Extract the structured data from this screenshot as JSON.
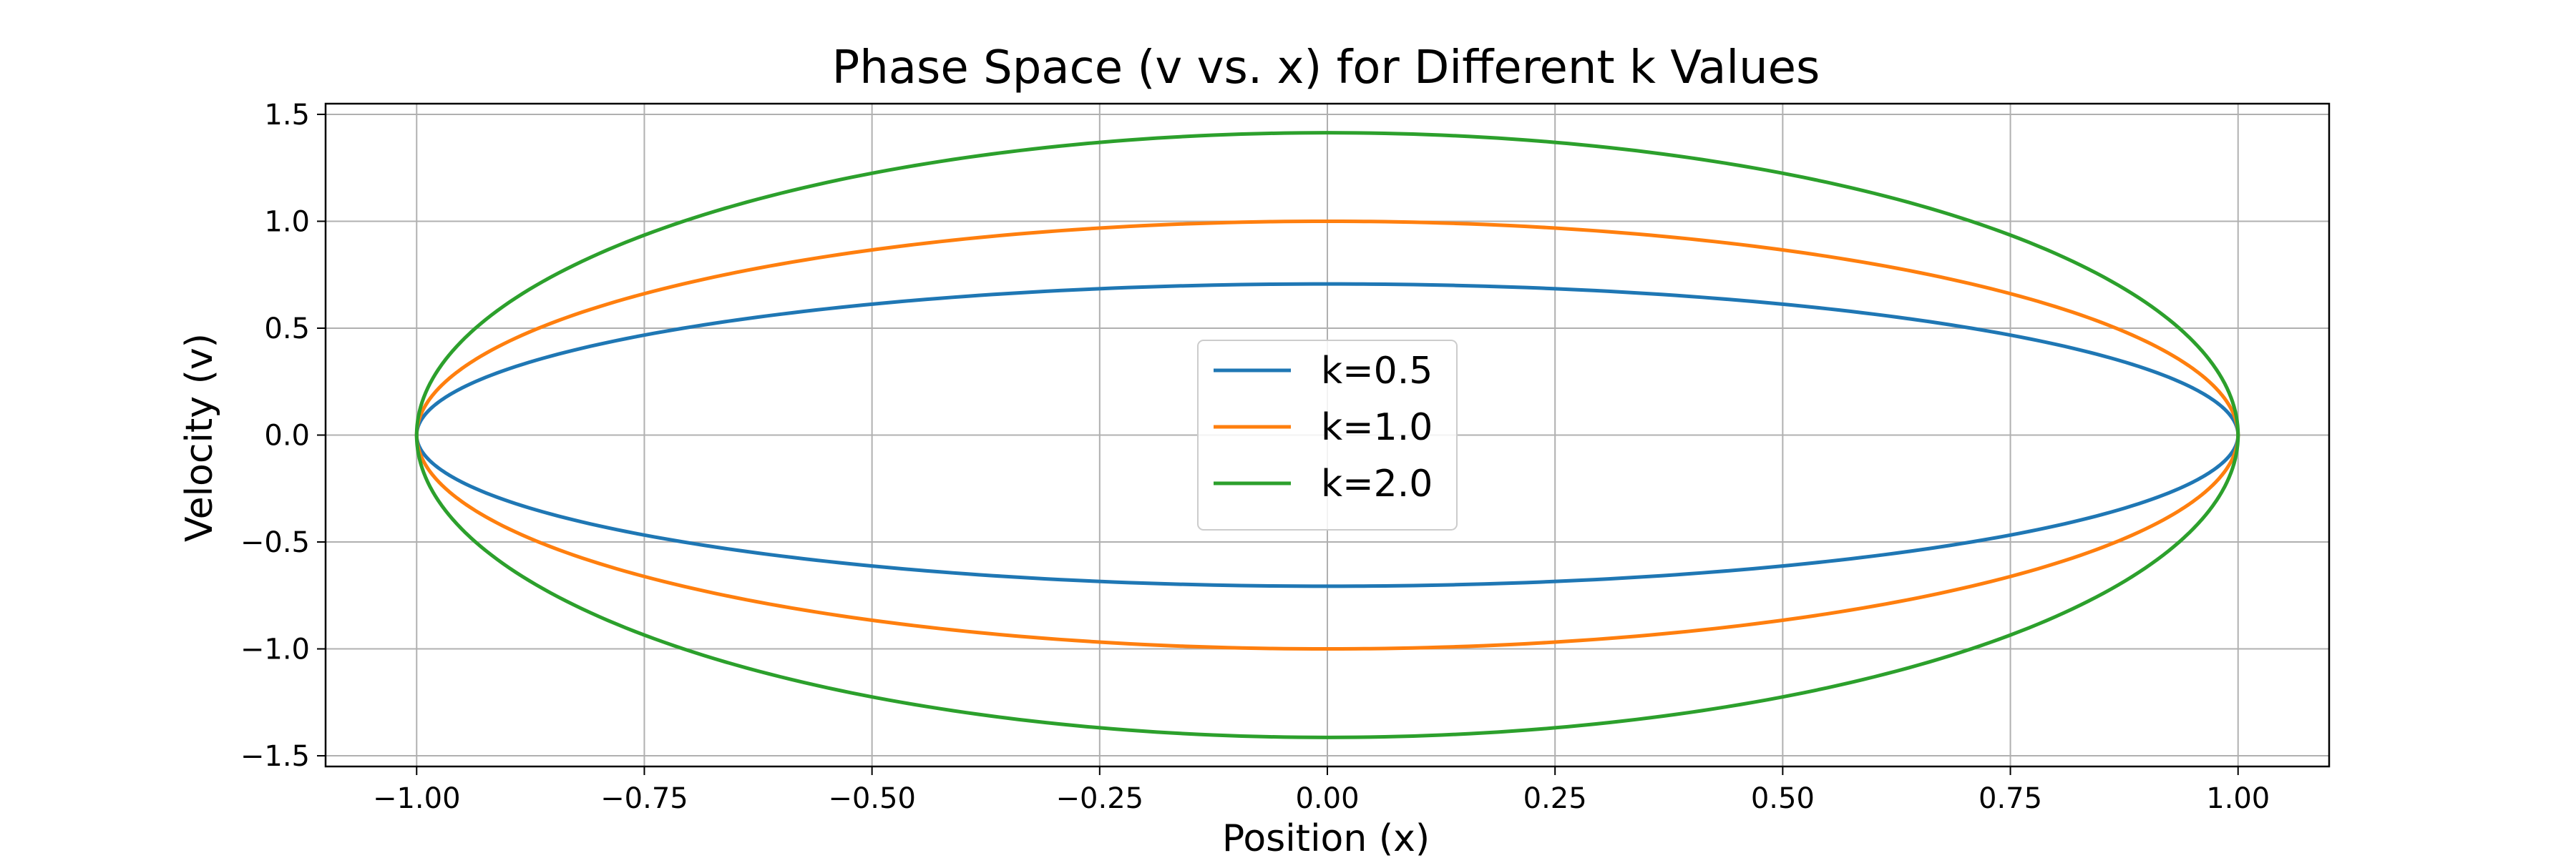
{
  "chart_data": {
    "type": "line",
    "title": "Phase Space (v vs. x) for Different k Values",
    "xlabel": "Position (x)",
    "ylabel": "Velocity (v)",
    "xlim": [
      -1.1,
      1.1
    ],
    "ylim": [
      -1.55,
      1.55
    ],
    "xticks": [
      -1.0,
      -0.75,
      -0.5,
      -0.25,
      0.0,
      0.25,
      0.5,
      0.75,
      1.0
    ],
    "xtick_labels": [
      "−1.00",
      "−0.75",
      "−0.50",
      "−0.25",
      "0.00",
      "0.25",
      "0.50",
      "0.75",
      "1.00"
    ],
    "yticks": [
      -1.5,
      -1.0,
      -0.5,
      0.0,
      0.5,
      1.0,
      1.5
    ],
    "ytick_labels": [
      "−1.5",
      "−1.0",
      "−0.5",
      "0.0",
      "0.5",
      "1.0",
      "1.5"
    ],
    "grid": true,
    "legend_position": "center",
    "series": [
      {
        "name": "k=0.5",
        "color": "#1f77b4",
        "amplitude_x": 1.0,
        "amplitude_v": 0.707
      },
      {
        "name": "k=1.0",
        "color": "#ff7f0e",
        "amplitude_x": 1.0,
        "amplitude_v": 1.0
      },
      {
        "name": "k=2.0",
        "color": "#2ca02c",
        "amplitude_x": 1.0,
        "amplitude_v": 1.414
      }
    ]
  }
}
